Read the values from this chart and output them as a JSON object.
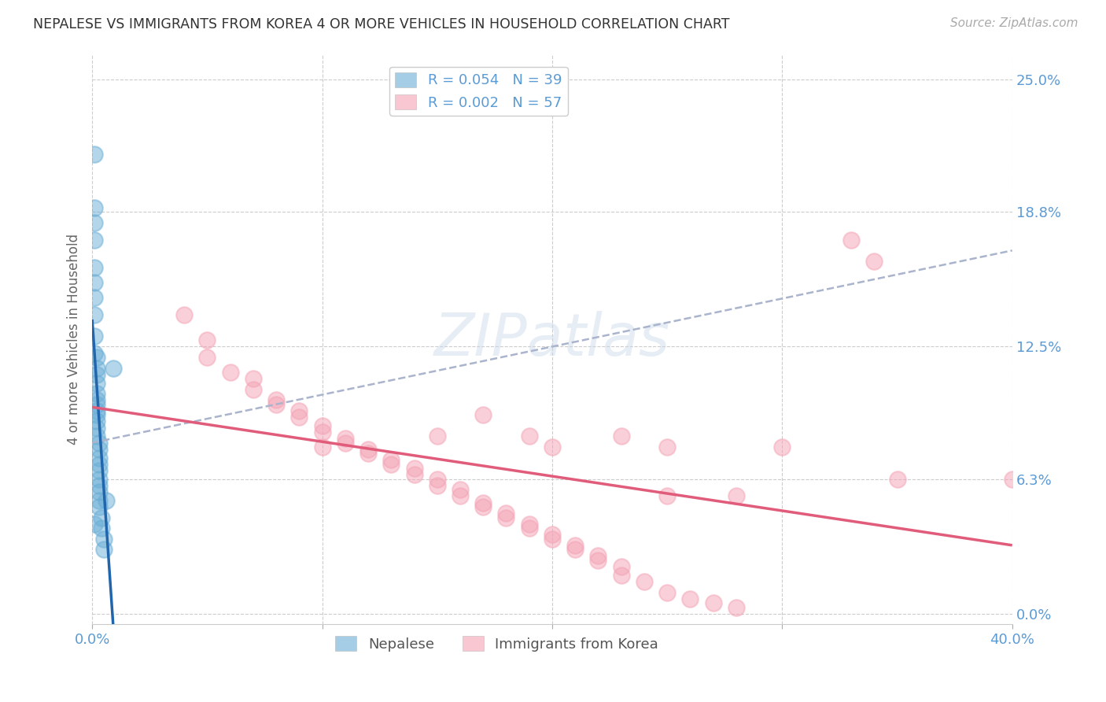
{
  "title": "NEPALESE VS IMMIGRANTS FROM KOREA 4 OR MORE VEHICLES IN HOUSEHOLD CORRELATION CHART",
  "source": "Source: ZipAtlas.com",
  "ylabel": "4 or more Vehicles in Household",
  "xlim": [
    0.0,
    0.4
  ],
  "ylim": [
    -0.005,
    0.262
  ],
  "ytick_vals": [
    0.0,
    0.063,
    0.125,
    0.188,
    0.25
  ],
  "ytick_labels_right": [
    "0.0%",
    "6.3%",
    "12.5%",
    "18.8%",
    "25.0%"
  ],
  "xtick_vals": [
    0.0,
    0.1,
    0.2,
    0.3,
    0.4
  ],
  "xtick_labels": [
    "0.0%",
    "",
    "",
    "",
    "40.0%"
  ],
  "nepalese_R": "0.054",
  "nepalese_N": "39",
  "korea_R": "0.002",
  "korea_N": "57",
  "nepalese_color": "#6aaed6",
  "korea_color": "#f4a3b5",
  "nepalese_line_color": "#2166ac",
  "korea_line_color": "#e05c7a",
  "dashed_line_color": "#aab4cc",
  "watermark": "ZIPatlas",
  "bg_color": "#ffffff",
  "grid_color": "#cccccc",
  "right_axis_color": "#5b9bd5",
  "nepalese_points": [
    [
      0.001,
      0.215
    ],
    [
      0.001,
      0.19
    ],
    [
      0.001,
      0.183
    ],
    [
      0.001,
      0.175
    ],
    [
      0.001,
      0.162
    ],
    [
      0.001,
      0.155
    ],
    [
      0.001,
      0.148
    ],
    [
      0.001,
      0.14
    ],
    [
      0.001,
      0.13
    ],
    [
      0.001,
      0.122
    ],
    [
      0.002,
      0.12
    ],
    [
      0.002,
      0.115
    ],
    [
      0.002,
      0.112
    ],
    [
      0.002,
      0.108
    ],
    [
      0.002,
      0.103
    ],
    [
      0.002,
      0.1
    ],
    [
      0.002,
      0.098
    ],
    [
      0.002,
      0.095
    ],
    [
      0.002,
      0.093
    ],
    [
      0.002,
      0.09
    ],
    [
      0.002,
      0.087
    ],
    [
      0.002,
      0.083
    ],
    [
      0.003,
      0.08
    ],
    [
      0.003,
      0.077
    ],
    [
      0.003,
      0.073
    ],
    [
      0.003,
      0.07
    ],
    [
      0.003,
      0.067
    ],
    [
      0.003,
      0.063
    ],
    [
      0.003,
      0.06
    ],
    [
      0.003,
      0.057
    ],
    [
      0.003,
      0.053
    ],
    [
      0.003,
      0.05
    ],
    [
      0.004,
      0.045
    ],
    [
      0.004,
      0.04
    ],
    [
      0.005,
      0.035
    ],
    [
      0.005,
      0.03
    ],
    [
      0.006,
      0.053
    ],
    [
      0.001,
      0.042
    ],
    [
      0.009,
      0.115
    ]
  ],
  "korea_points": [
    [
      0.04,
      0.14
    ],
    [
      0.05,
      0.128
    ],
    [
      0.05,
      0.12
    ],
    [
      0.06,
      0.113
    ],
    [
      0.07,
      0.11
    ],
    [
      0.07,
      0.105
    ],
    [
      0.08,
      0.1
    ],
    [
      0.08,
      0.098
    ],
    [
      0.09,
      0.095
    ],
    [
      0.09,
      0.092
    ],
    [
      0.1,
      0.088
    ],
    [
      0.1,
      0.085
    ],
    [
      0.11,
      0.082
    ],
    [
      0.11,
      0.08
    ],
    [
      0.12,
      0.077
    ],
    [
      0.12,
      0.075
    ],
    [
      0.13,
      0.072
    ],
    [
      0.13,
      0.07
    ],
    [
      0.14,
      0.068
    ],
    [
      0.14,
      0.065
    ],
    [
      0.15,
      0.063
    ],
    [
      0.15,
      0.06
    ],
    [
      0.16,
      0.058
    ],
    [
      0.16,
      0.055
    ],
    [
      0.17,
      0.052
    ],
    [
      0.17,
      0.05
    ],
    [
      0.18,
      0.047
    ],
    [
      0.18,
      0.045
    ],
    [
      0.19,
      0.042
    ],
    [
      0.19,
      0.04
    ],
    [
      0.2,
      0.037
    ],
    [
      0.2,
      0.035
    ],
    [
      0.21,
      0.032
    ],
    [
      0.21,
      0.03
    ],
    [
      0.22,
      0.027
    ],
    [
      0.22,
      0.025
    ],
    [
      0.23,
      0.022
    ],
    [
      0.23,
      0.018
    ],
    [
      0.24,
      0.015
    ],
    [
      0.25,
      0.01
    ],
    [
      0.26,
      0.007
    ],
    [
      0.27,
      0.005
    ],
    [
      0.28,
      0.003
    ],
    [
      0.35,
      0.063
    ],
    [
      0.4,
      0.063
    ],
    [
      0.33,
      0.175
    ],
    [
      0.34,
      0.165
    ],
    [
      0.1,
      0.078
    ],
    [
      0.2,
      0.078
    ],
    [
      0.15,
      0.083
    ],
    [
      0.25,
      0.078
    ],
    [
      0.3,
      0.078
    ],
    [
      0.17,
      0.093
    ],
    [
      0.19,
      0.083
    ],
    [
      0.23,
      0.083
    ],
    [
      0.25,
      0.055
    ],
    [
      0.28,
      0.055
    ]
  ]
}
